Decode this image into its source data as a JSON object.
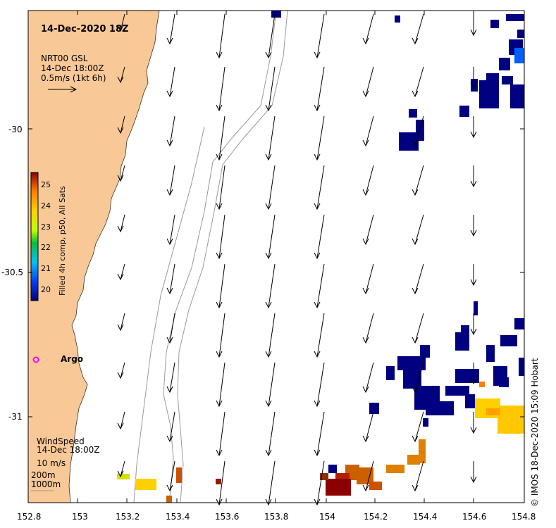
{
  "map": {
    "title": "14-Dec-2020 18Z",
    "current_legend": {
      "source": "NRT00 GSL",
      "time": "14-Dec 18:00Z",
      "scale": "0.5m/s (1kt 6h)"
    },
    "wind_legend": {
      "title": "WindSpeed",
      "time": "14-Dec 18:00Z",
      "scale": "10 m/s"
    },
    "isobaths": {
      "shallow": "200m",
      "deep": "1000m"
    },
    "argo_label": "Argo",
    "credit": "©  IMOS 18-Dec-2020 15:09 Hobart",
    "colors": {
      "land": "#F9C897",
      "sst_low": "#000080",
      "sst_high": "#8B0000",
      "argo": "#FF00FF"
    },
    "axes": {
      "x_ticks": [
        "152.8",
        "153",
        "153.2",
        "153.4",
        "153.6",
        "153.8",
        "154",
        "154.2",
        "154.4",
        "154.6",
        "154.8"
      ],
      "y_ticks": [
        "-30",
        "-30.5",
        "-31"
      ]
    },
    "colorbar": {
      "label": "Filled 4h comp, p50, All Sats",
      "ticks": [
        "25",
        "24",
        "23",
        "22",
        "21",
        "20"
      ],
      "range": [
        19.75,
        25.5
      ]
    }
  }
}
